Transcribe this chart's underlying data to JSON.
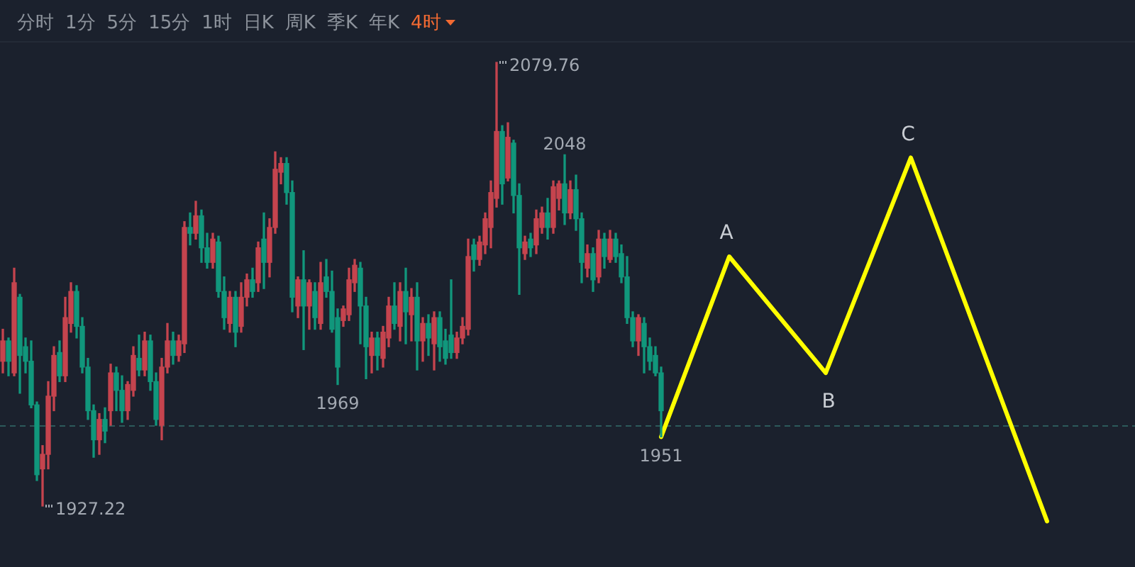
{
  "chart_data": {
    "type": "candlestick",
    "categories": [
      null,
      null,
      null,
      null,
      null,
      null,
      null,
      null,
      null,
      null,
      null,
      null,
      null,
      null,
      null,
      null,
      null,
      null,
      null,
      null,
      null,
      null,
      null,
      null,
      null,
      null,
      null,
      null,
      null,
      null,
      null,
      null,
      null,
      null,
      null,
      null,
      null,
      null,
      null,
      null,
      null,
      null,
      null,
      null,
      null,
      null,
      null,
      null,
      null,
      null,
      null,
      null,
      null,
      null,
      null,
      null,
      null,
      null,
      null,
      null,
      null,
      null,
      null,
      null,
      null,
      null,
      null,
      null,
      null,
      null,
      null,
      null,
      null,
      null,
      null,
      null,
      null,
      null,
      null,
      null,
      null,
      null,
      null,
      null,
      null,
      null,
      null,
      null,
      null,
      null,
      null,
      null,
      null,
      null,
      null,
      null,
      null,
      null,
      null,
      null,
      null,
      null,
      null,
      null,
      null,
      null,
      null,
      null,
      null,
      null,
      null,
      null,
      null,
      null,
      null,
      null,
      null,
      null,
      null,
      null,
      null,
      null,
      null,
      null,
      null,
      null,
      null,
      null,
      null,
      null,
      null,
      null,
      null,
      null,
      null,
      null,
      null,
      null,
      null,
      null,
      null,
      null,
      null,
      null,
      null,
      null,
      null,
      null,
      null,
      null,
      null,
      null,
      null,
      null,
      null,
      null,
      null,
      null,
      null,
      null,
      null,
      null,
      null,
      null,
      null,
      null,
      null,
      null,
      null,
      null,
      null,
      null,
      null,
      null,
      null,
      null,
      null,
      null,
      null,
      null,
      null,
      null,
      null,
      null,
      null,
      null,
      null,
      null,
      null,
      null,
      null,
      null,
      null,
      null,
      null,
      null,
      null,
      null,
      null,
      null
    ],
    "ohlc": [
      [
        1977,
        1988,
        1973,
        1984
      ],
      [
        1984,
        1985,
        1972,
        1977
      ],
      [
        1973,
        2009,
        1972,
        2004
      ],
      [
        1999,
        2000,
        1966,
        1979
      ],
      [
        1982,
        1985,
        1973,
        1977
      ],
      [
        1977,
        1984,
        1961,
        1962
      ],
      [
        1962,
        1963,
        1936,
        1938
      ],
      [
        1940,
        1948,
        1927.22,
        1945
      ],
      [
        1945,
        1970,
        1940,
        1965
      ],
      [
        1965,
        1982,
        1960,
        1979
      ],
      [
        1980,
        1984,
        1970,
        1972
      ],
      [
        1972,
        1999,
        1970,
        1992
      ],
      [
        1990,
        2004,
        1987,
        2001
      ],
      [
        2001,
        2003,
        1985,
        1989
      ],
      [
        1989,
        1992,
        1973,
        1975
      ],
      [
        1975,
        1978,
        1957,
        1960
      ],
      [
        1960,
        1962,
        1944,
        1950
      ],
      [
        1950,
        1959,
        1945,
        1957
      ],
      [
        1957,
        1961,
        1949,
        1953
      ],
      [
        1960,
        1976,
        1955,
        1973
      ],
      [
        1973,
        1975,
        1960,
        1967
      ],
      [
        1967,
        1972,
        1956,
        1960
      ],
      [
        1960,
        1970,
        1957,
        1969
      ],
      [
        1967,
        1982,
        1965,
        1979
      ],
      [
        1978,
        1986,
        1972,
        1974
      ],
      [
        1974,
        1987,
        1972,
        1984
      ],
      [
        1984,
        1986,
        1967,
        1970
      ],
      [
        1970,
        1973,
        1955,
        1957
      ],
      [
        1955,
        1978,
        1950,
        1975
      ],
      [
        1975,
        1990,
        1973,
        1984
      ],
      [
        1984,
        1987,
        1976,
        1979
      ],
      [
        1979,
        1986,
        1977,
        1984
      ],
      [
        1983,
        2025,
        1980,
        2023
      ],
      [
        2023,
        2028,
        2017,
        2021
      ],
      [
        2021,
        2032,
        2019,
        2027
      ],
      [
        2027,
        2029,
        2011,
        2016
      ],
      [
        2016,
        2021,
        2009,
        2011
      ],
      [
        2011,
        2021,
        2009,
        2019
      ],
      [
        2018,
        2020,
        1999,
        2001
      ],
      [
        2001,
        2006,
        1988,
        1992
      ],
      [
        1990,
        2001,
        1987,
        1999
      ],
      [
        1999,
        2001,
        1982,
        1987
      ],
      [
        1989,
        2004,
        1987,
        1999
      ],
      [
        1999,
        2007,
        1996,
        2005
      ],
      [
        2005,
        2009,
        1999,
        2001
      ],
      [
        2004,
        2018,
        2001,
        2016
      ],
      [
        2019,
        2028,
        2002,
        2011
      ],
      [
        2011,
        2026,
        2006,
        2023
      ],
      [
        2023,
        2049,
        2021,
        2043
      ],
      [
        2042,
        2047,
        2038,
        2045
      ],
      [
        2045,
        2047,
        2031,
        2035
      ],
      [
        2035,
        2039,
        1994,
        1999
      ],
      [
        1996,
        2006,
        1992,
        2005
      ],
      [
        2005,
        2015,
        1981,
        1996
      ],
      [
        1996,
        2005,
        1988,
        2004
      ],
      [
        2001,
        2004,
        1988,
        1992
      ],
      [
        1990,
        2011,
        1988,
        2004
      ],
      [
        2006,
        2012,
        1999,
        2001
      ],
      [
        2001,
        2008,
        1987,
        1988
      ],
      [
        1992,
        1995,
        1969,
        1975
      ],
      [
        1991,
        1996,
        1989,
        1995
      ],
      [
        1993,
        2009,
        1991,
        2005
      ],
      [
        2004,
        2012,
        2001,
        2010
      ],
      [
        2009,
        2011,
        1983,
        1996
      ],
      [
        1996,
        1999,
        1971,
        1982
      ],
      [
        1979,
        1987,
        1973,
        1985
      ],
      [
        1985,
        1987,
        1974,
        1979
      ],
      [
        1978,
        1989,
        1975,
        1987
      ],
      [
        1985,
        1999,
        1982,
        1996
      ],
      [
        1996,
        2004,
        1988,
        1990
      ],
      [
        1989,
        2004,
        1984,
        2001
      ],
      [
        2001,
        2009,
        1983,
        1994
      ],
      [
        1993,
        2002,
        1984,
        1999
      ],
      [
        1999,
        2004,
        1974,
        1984
      ],
      [
        1984,
        1992,
        1977,
        1990
      ],
      [
        1990,
        1993,
        1979,
        1985
      ],
      [
        1983,
        1994,
        1974,
        1992
      ],
      [
        1992,
        1994,
        1977,
        1982
      ],
      [
        1984,
        1988,
        1976,
        1978
      ],
      [
        1986,
        2005,
        1978,
        1980
      ],
      [
        1980,
        1987,
        1978,
        1985
      ],
      [
        1985,
        1992,
        1983,
        1989
      ],
      [
        1988,
        2019,
        1986,
        2013
      ],
      [
        2017,
        2019,
        2008,
        2012
      ],
      [
        2012,
        2020,
        2010,
        2018
      ],
      [
        2017,
        2028,
        2014,
        2026
      ],
      [
        2023,
        2039,
        2016,
        2035
      ],
      [
        2033,
        2079.76,
        2030,
        2056
      ],
      [
        2056,
        2058,
        2031,
        2038
      ],
      [
        2040,
        2059,
        2039,
        2054
      ],
      [
        2052,
        2053,
        2028,
        2034
      ],
      [
        2034,
        2038,
        2000,
        2016
      ],
      [
        2014,
        2020,
        2012,
        2018
      ],
      [
        2019,
        2021,
        2013,
        2016
      ],
      [
        2017,
        2029,
        2014,
        2026
      ],
      [
        2023,
        2030,
        2021,
        2028
      ],
      [
        2028,
        2033,
        2019,
        2023
      ],
      [
        2023,
        2039,
        2021,
        2037
      ],
      [
        2033,
        2039,
        2029,
        2038
      ],
      [
        2038,
        2048,
        2024,
        2028
      ],
      [
        2028,
        2039,
        2026,
        2036
      ],
      [
        2036,
        2041,
        2022,
        2026
      ],
      [
        2026,
        2028,
        2004,
        2011
      ],
      [
        2009,
        2017,
        2006,
        2014
      ],
      [
        2014,
        2016,
        2001,
        2005
      ],
      [
        2006,
        2022,
        2004,
        2019
      ],
      [
        2019,
        2021,
        2009,
        2013
      ],
      [
        2012,
        2022,
        2011,
        2019
      ],
      [
        2019,
        2021,
        2011,
        2013
      ],
      [
        2014,
        2017,
        2004,
        2006
      ],
      [
        2006,
        2013,
        1990,
        1992
      ],
      [
        1992,
        1994,
        1982,
        1984
      ],
      [
        1984,
        1993,
        1979,
        1992
      ],
      [
        1990,
        1992,
        1973,
        1982
      ],
      [
        1982,
        1985,
        1974,
        1977
      ],
      [
        1979,
        1982,
        1972,
        1973
      ],
      [
        1973,
        1975,
        1951,
        1960
      ],
      null,
      null,
      null,
      null,
      null,
      null,
      null,
      null,
      null,
      null,
      null,
      null,
      null,
      null,
      null,
      null,
      null,
      null,
      null,
      null,
      null,
      null,
      null,
      null,
      null,
      null,
      null,
      null,
      null,
      null,
      null,
      null,
      null,
      null,
      null,
      null,
      null,
      null,
      null,
      null,
      null,
      null,
      null,
      null,
      null,
      null,
      null,
      null,
      null,
      null,
      null,
      null,
      null,
      null,
      null,
      null,
      null,
      null,
      null,
      null,
      null,
      null,
      null,
      null,
      null,
      null,
      null,
      null,
      null,
      null,
      null,
      null,
      null,
      null,
      null,
      null,
      null,
      null,
      null,
      null,
      null,
      null,
      null
    ],
    "colors": [
      "#c5444e",
      "#11977c",
      "#c5444e",
      "#11977c",
      "#11977c",
      "#11977c",
      "#11977c",
      "#c5444e",
      "#c5444e",
      "#c5444e",
      "#11977c",
      "#c5444e",
      "#c5444e",
      "#11977c",
      "#11977c",
      "#11977c",
      "#11977c",
      "#c5444e",
      "#11977c",
      "#c5444e",
      "#11977c",
      "#11977c",
      "#c5444e",
      "#c5444e",
      "#11977c",
      "#c5444e",
      "#11977c",
      "#11977c",
      "#c5444e",
      "#c5444e",
      "#11977c",
      "#c5444e",
      "#c5444e",
      "#11977c",
      "#c5444e",
      "#11977c",
      "#11977c",
      "#c5444e",
      "#11977c",
      "#11977c",
      "#c5444e",
      "#11977c",
      "#c5444e",
      "#c5444e",
      "#11977c",
      "#c5444e",
      "#11977c",
      "#c5444e",
      "#c5444e",
      "#c5444e",
      "#11977c",
      "#11977c",
      "#c5444e",
      "#11977c",
      "#c5444e",
      "#11977c",
      "#c5444e",
      "#11977c",
      "#11977c",
      "#11977c",
      "#c5444e",
      "#c5444e",
      "#c5444e",
      "#11977c",
      "#11977c",
      "#c5444e",
      "#11977c",
      "#c5444e",
      "#c5444e",
      "#11977c",
      "#c5444e",
      "#11977c",
      "#c5444e",
      "#11977c",
      "#c5444e",
      "#11977c",
      "#c5444e",
      "#11977c",
      "#11977c",
      "#11977c",
      "#c5444e",
      "#c5444e",
      "#c5444e",
      "#11977c",
      "#c5444e",
      "#c5444e",
      "#c5444e",
      "#c5444e",
      "#11977c",
      "#c5444e",
      "#11977c",
      "#11977c",
      "#c5444e",
      "#11977c",
      "#c5444e",
      "#c5444e",
      "#11977c",
      "#c5444e",
      "#c5444e",
      "#11977c",
      "#c5444e",
      "#11977c",
      "#11977c",
      "#c5444e",
      "#11977c",
      "#c5444e",
      "#11977c",
      "#c5444e",
      "#11977c",
      "#11977c",
      "#11977c",
      "#11977c",
      "#c5444e",
      "#11977c",
      "#11977c",
      "#11977c",
      "#11977c",
      null,
      null,
      null,
      null,
      null,
      null,
      null,
      null,
      null,
      null,
      null,
      null,
      null,
      null,
      null,
      null,
      null,
      null,
      null,
      null,
      null,
      null,
      null,
      null,
      null,
      null,
      null,
      null,
      null,
      null,
      null,
      null,
      null,
      null,
      null,
      null,
      null,
      null,
      null,
      null,
      null,
      null,
      null,
      null,
      null,
      null,
      null,
      null,
      null,
      null,
      null,
      null,
      null,
      null,
      null,
      null,
      null,
      null,
      null,
      null,
      null,
      null,
      null,
      null,
      null,
      null,
      null,
      null,
      null,
      null,
      null,
      null,
      null,
      null,
      null,
      null,
      null,
      null,
      null,
      null,
      null,
      null,
      null
    ],
    "value_labels": [
      null,
      null,
      null,
      null,
      null,
      null,
      null,
      "1927.22",
      null,
      null,
      null,
      null,
      null,
      null,
      null,
      null,
      null,
      null,
      null,
      null,
      null,
      null,
      null,
      null,
      null,
      null,
      null,
      null,
      null,
      null,
      null,
      null,
      null,
      null,
      null,
      null,
      null,
      null,
      null,
      null,
      null,
      null,
      null,
      null,
      null,
      null,
      null,
      null,
      null,
      null,
      null,
      null,
      null,
      null,
      null,
      null,
      null,
      null,
      null,
      "1969",
      null,
      null,
      null,
      null,
      null,
      null,
      null,
      null,
      null,
      null,
      null,
      null,
      null,
      null,
      null,
      null,
      null,
      null,
      null,
      null,
      null,
      null,
      null,
      null,
      null,
      null,
      null,
      "2079.76",
      null,
      null,
      null,
      null,
      null,
      null,
      null,
      null,
      null,
      null,
      null,
      "2048",
      null,
      null,
      null,
      null,
      null,
      null,
      null,
      null,
      null,
      null,
      null,
      null,
      null,
      null,
      null,
      null,
      "1951",
      null,
      null,
      null,
      null,
      null,
      null,
      null,
      null,
      null,
      null,
      null,
      null,
      null,
      null,
      null,
      null,
      null,
      null,
      null,
      null,
      null,
      null,
      null,
      null,
      null,
      null,
      null,
      null,
      null,
      null,
      null,
      null,
      null,
      null,
      null,
      null,
      null,
      null,
      null,
      null,
      null,
      null,
      null,
      null,
      null,
      null,
      null,
      null,
      null,
      null,
      null,
      null,
      null,
      null,
      null,
      null,
      null,
      null,
      null,
      null,
      null,
      null,
      null,
      null,
      null,
      null,
      null,
      null,
      null,
      null,
      null,
      null,
      null,
      null,
      null,
      null,
      null,
      null,
      null,
      null,
      null,
      null,
      null
    ],
    "series": [
      {
        "type": "line",
        "color": "#ffff00",
        "values": [
          null,
          null,
          null,
          null,
          null,
          null,
          null,
          null,
          null,
          null,
          null,
          null,
          null,
          null,
          null,
          null,
          null,
          null,
          null,
          null,
          null,
          null,
          null,
          null,
          null,
          null,
          null,
          null,
          null,
          null,
          null,
          null,
          null,
          null,
          null,
          null,
          null,
          null,
          null,
          null,
          null,
          null,
          null,
          null,
          null,
          null,
          null,
          null,
          null,
          null,
          null,
          null,
          null,
          null,
          null,
          null,
          null,
          null,
          null,
          null,
          null,
          null,
          null,
          null,
          null,
          null,
          null,
          null,
          null,
          null,
          null,
          null,
          null,
          null,
          null,
          null,
          null,
          null,
          null,
          null,
          null,
          null,
          null,
          null,
          null,
          null,
          null,
          null,
          null,
          null,
          null,
          null,
          null,
          null,
          null,
          null,
          null,
          null,
          null,
          null,
          null,
          null,
          null,
          null,
          null,
          null,
          null,
          null,
          null,
          null,
          null,
          null,
          null,
          null,
          null,
          null,
          1951,
          null,
          null,
          null,
          null,
          null,
          null,
          null,
          null,
          null,
          null,
          null,
          2013,
          null,
          null,
          null,
          null,
          null,
          null,
          null,
          null,
          null,
          null,
          null,
          null,
          null,
          null,
          null,
          null,
          1973,
          null,
          null,
          null,
          null,
          null,
          null,
          null,
          null,
          null,
          null,
          null,
          null,
          null,
          null,
          2047,
          null,
          null,
          null,
          null,
          null,
          null,
          null,
          null,
          null,
          null,
          null,
          null,
          null,
          null,
          null,
          null,
          null,
          null,
          null,
          null,
          null,
          null,
          null,
          1922,
          null,
          null,
          null,
          null,
          null,
          null,
          null,
          null,
          null,
          null,
          null,
          null,
          null,
          null,
          null
        ],
        "value_labels": [
          null,
          null,
          null,
          null,
          null,
          null,
          null,
          null,
          null,
          null,
          null,
          null,
          null,
          null,
          null,
          null,
          null,
          null,
          null,
          null,
          null,
          null,
          null,
          null,
          null,
          null,
          null,
          null,
          null,
          null,
          null,
          null,
          null,
          null,
          null,
          null,
          null,
          null,
          null,
          null,
          null,
          null,
          null,
          null,
          null,
          null,
          null,
          null,
          null,
          null,
          null,
          null,
          null,
          null,
          null,
          null,
          null,
          null,
          null,
          null,
          null,
          null,
          null,
          null,
          null,
          null,
          null,
          null,
          null,
          null,
          null,
          null,
          null,
          null,
          null,
          null,
          null,
          null,
          null,
          null,
          null,
          null,
          null,
          null,
          null,
          null,
          null,
          null,
          null,
          null,
          null,
          null,
          null,
          null,
          null,
          null,
          null,
          null,
          null,
          null,
          null,
          null,
          null,
          null,
          null,
          null,
          null,
          null,
          null,
          null,
          null,
          null,
          null,
          null,
          null,
          null,
          null,
          null,
          null,
          null,
          null,
          null,
          null,
          null,
          null,
          null,
          null,
          null,
          "A",
          null,
          null,
          null,
          null,
          null,
          null,
          null,
          null,
          null,
          null,
          null,
          null,
          null,
          null,
          null,
          null,
          "B",
          null,
          null,
          null,
          null,
          null,
          null,
          null,
          null,
          null,
          null,
          null,
          null,
          null,
          null,
          "C",
          null,
          null,
          null,
          null,
          null,
          null,
          null,
          null,
          null,
          null,
          null,
          null,
          null,
          null,
          null,
          null,
          null,
          null,
          null,
          null,
          null,
          null,
          null,
          null,
          null,
          null,
          null,
          null,
          null,
          null,
          null,
          null,
          null,
          null,
          null,
          null,
          null,
          null,
          null
        ]
      }
    ],
    "ref_lines": [
      {
        "axis": "y",
        "value": 1955,
        "color": "#2c5a5b",
        "line_style": "dashed"
      }
    ],
    "annotations": [
      "分时",
      "1分",
      "5分",
      "15分",
      "1时",
      "日K",
      "周K",
      "季K",
      "年K",
      "4时"
    ],
    "legend": false,
    "tick_labels": false,
    "marker": "none"
  }
}
